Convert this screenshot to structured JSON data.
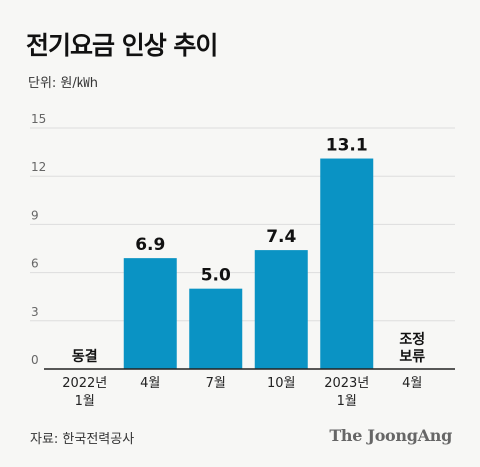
{
  "title": "전기요금 인상 추이",
  "unit_label": "단위: 원/㎾h",
  "source": "자료: 한국전력공사",
  "brand": "The JoongAng",
  "colors": {
    "bar": "#0a93c4",
    "axis": "#222222",
    "grid": "#dddddd",
    "tick": "#666666"
  },
  "chart_data": {
    "type": "bar",
    "categories": [
      [
        "2022년",
        "1월"
      ],
      [
        "4월"
      ],
      [
        "7월"
      ],
      [
        "10월"
      ],
      [
        "2023년",
        "1월"
      ],
      [
        "4월"
      ]
    ],
    "values": [
      null,
      6.9,
      5.0,
      7.4,
      13.1,
      null
    ],
    "value_labels": [
      "",
      "6.9",
      "5.0",
      "7.4",
      "13.1",
      ""
    ],
    "annotations": [
      [
        "동결"
      ],
      [],
      [],
      [],
      [],
      [
        "조정",
        "보류"
      ]
    ],
    "yticks": [
      0,
      3,
      6,
      9,
      12,
      15
    ],
    "ylim": [
      0,
      15
    ],
    "xlabel": "",
    "ylabel": "",
    "grid": true
  }
}
